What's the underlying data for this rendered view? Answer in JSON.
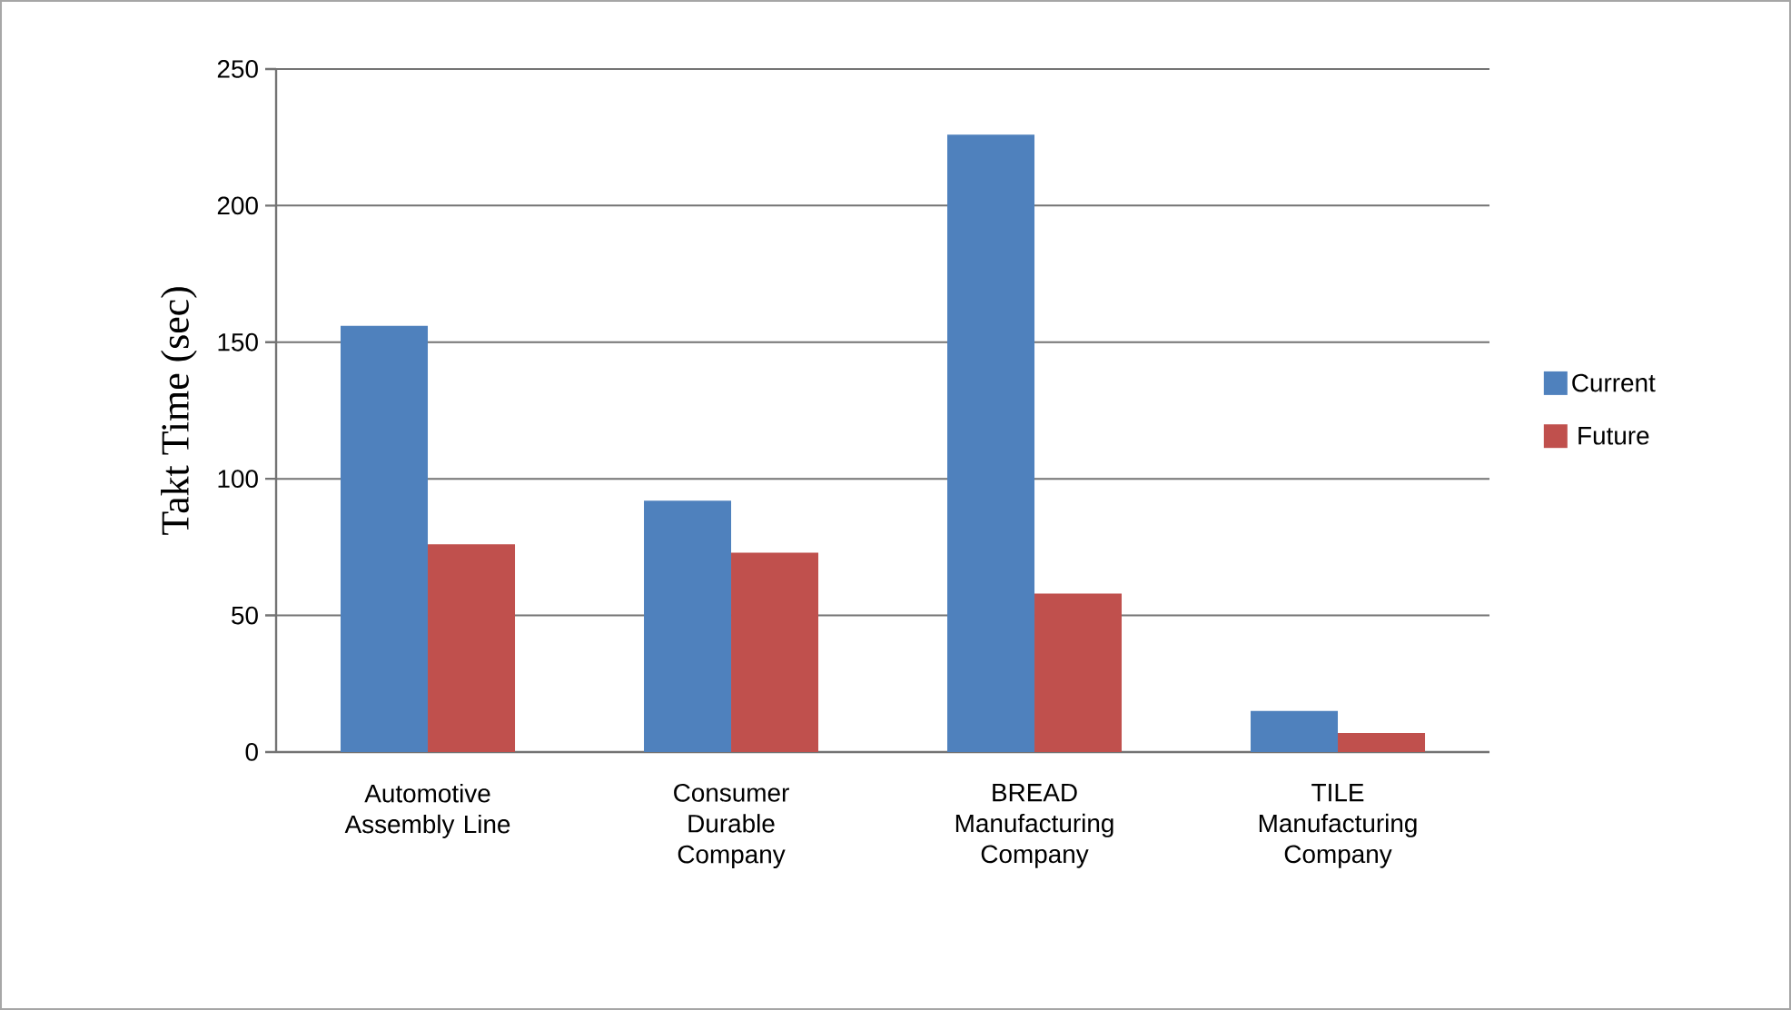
{
  "chart_data": {
    "type": "bar",
    "ylabel": "Takt Time (sec)",
    "categories": [
      "Automotive Assembly Line",
      "Consumer Durable Company",
      "BREAD Manufacturing Company",
      "TILE Manufacturing Company"
    ],
    "series": [
      {
        "name": "Current",
        "color": "#4f81bd",
        "values": [
          156,
          92,
          226,
          15
        ]
      },
      {
        "name": "Future",
        "color": "#c0504d",
        "values": [
          76,
          73,
          58,
          7
        ]
      }
    ],
    "ylim": [
      0,
      250
    ],
    "yticks": [
      0,
      50,
      100,
      150,
      200,
      250
    ],
    "grid": "y",
    "legend": "right"
  }
}
